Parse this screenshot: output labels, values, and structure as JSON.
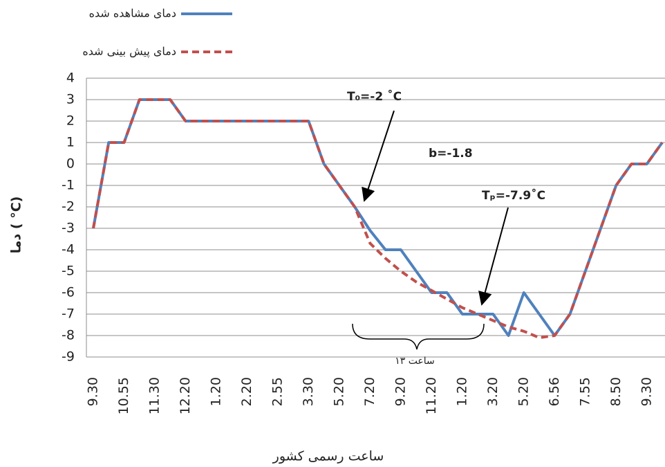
{
  "chart_data": {
    "type": "line",
    "title_y": "دما ( °C)",
    "x_label": "ساعت رسمی کشور",
    "categories": [
      "9.30",
      null,
      "10.55",
      null,
      "11.30",
      null,
      "12.20",
      null,
      "1.20",
      null,
      "2.20",
      null,
      "2.55",
      null,
      "3.30",
      null,
      "5.20",
      null,
      "7.20",
      null,
      "9.20",
      null,
      "11.20",
      null,
      "1.20",
      null,
      "3.20",
      null,
      "5.20",
      null,
      "6.56",
      null,
      "7.55",
      null,
      "8.50",
      null,
      "9.30",
      null
    ],
    "series": [
      {
        "name": "دمای مشاهده شده",
        "color": "#4f81bd",
        "dash": false,
        "values": [
          -3,
          1,
          1,
          3,
          3,
          3,
          2,
          2,
          2,
          2,
          2,
          2,
          2,
          2,
          2,
          0,
          -1,
          -2,
          -3.1,
          -4,
          -4,
          -5,
          -6,
          -6,
          -7,
          -7,
          -7,
          -8,
          -6,
          -7,
          -8,
          -7,
          -5,
          -3,
          -1,
          0,
          0,
          1
        ]
      },
      {
        "name": "دمای پیش بینی شده",
        "color": "#c0504d",
        "dash": true,
        "values": [
          -3,
          1,
          1,
          3,
          3,
          3,
          2,
          2,
          2,
          2,
          2,
          2,
          2,
          2,
          2,
          0,
          -1,
          -2,
          -3.7,
          -4.4,
          -5,
          -5.5,
          -5.9,
          -6.3,
          -6.7,
          -7,
          -7.3,
          -7.6,
          -7.8,
          -8.1,
          -8,
          -7,
          -5,
          -3,
          -1,
          0,
          0,
          1
        ]
      }
    ],
    "ylim": [
      -9,
      4
    ],
    "yticks": [
      -9,
      -8,
      -7,
      -6,
      -5,
      -4,
      -3,
      -2,
      -1,
      0,
      1,
      2,
      3,
      4
    ],
    "grid": true,
    "annotations": [
      "T₀=-2 ˚C",
      "b=-1.8",
      "Tₚ=-7.9˚C",
      "۱۳ ساعت"
    ]
  }
}
